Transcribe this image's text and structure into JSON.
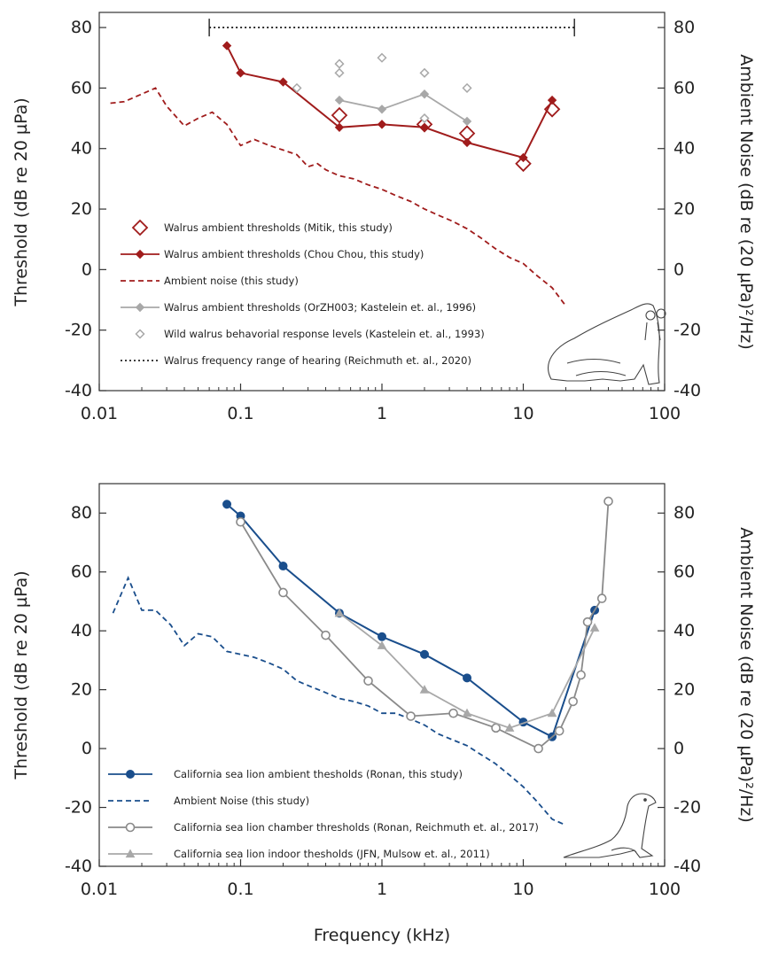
{
  "chart_data": [
    {
      "type": "line",
      "xscale": "log",
      "xlim": [
        0.01,
        100
      ],
      "ylim": [
        -40,
        85
      ],
      "y2lim": [
        -40,
        85
      ],
      "x_ticks": [
        0.01,
        0.1,
        1,
        10,
        100
      ],
      "x_tick_labels": [
        "0.01",
        "0.1",
        "1",
        "10",
        "100"
      ],
      "y_ticks": [
        -40,
        -20,
        0,
        20,
        40,
        60,
        80
      ],
      "y_tick_labels": [
        "-40",
        "-20",
        "0",
        "20",
        "40",
        "60",
        "80"
      ],
      "ylabel": "Threshold (dB re 20 µPa)",
      "y2label": "Ambient Noise (dB re (20 µPa)²/Hz)",
      "grid": false,
      "legend_position": "bottom-left",
      "series": [
        {
          "name": "Walrus ambient thresholds (Mitik, this study)",
          "style": "open-diamond-large",
          "color": "#a01c1c",
          "x": [
            0.5,
            2,
            4,
            10,
            16
          ],
          "y": [
            51,
            48,
            45,
            35,
            53
          ]
        },
        {
          "name": "Walrus ambient thresholds (Chou Chou, this study)",
          "style": "line-filled-diamond",
          "color": "#a01c1c",
          "x": [
            0.08,
            0.1,
            0.2,
            0.5,
            1,
            2,
            4,
            10,
            16
          ],
          "y": [
            74,
            65,
            62,
            47,
            48,
            47,
            42,
            37,
            56
          ]
        },
        {
          "name": "Ambient noise (this study)",
          "style": "dashed",
          "color": "#a01c1c",
          "x": [
            0.012,
            0.015,
            0.02,
            0.025,
            0.03,
            0.04,
            0.05,
            0.063,
            0.08,
            0.1,
            0.125,
            0.16,
            0.2,
            0.25,
            0.3,
            0.35,
            0.4,
            0.5,
            0.63,
            0.8,
            1,
            1.25,
            1.6,
            2,
            2.5,
            3.15,
            4,
            5,
            6.3,
            8,
            10,
            12.5,
            16,
            20
          ],
          "y": [
            55,
            55.5,
            58,
            60,
            54,
            47.5,
            50,
            52,
            48,
            41,
            43,
            41,
            39.5,
            38,
            34,
            35,
            33,
            31,
            30,
            28,
            26.5,
            24.5,
            22.5,
            20,
            18,
            16,
            13.5,
            10.5,
            7,
            4,
            2,
            -2,
            -6,
            -12
          ]
        },
        {
          "name": "Walrus ambient thresholds (OrZH003; Kastelein et. al., 1996)",
          "style": "line-filled-diamond",
          "color": "#a8a8a8",
          "x": [
            0.5,
            1,
            2,
            4
          ],
          "y": [
            56,
            53,
            58,
            49
          ]
        },
        {
          "name": "Wild walrus behavorial response levels (Kastelein et. al., 1993)",
          "style": "open-diamond-small",
          "color": "#a8a8a8",
          "x": [
            0.25,
            0.5,
            0.5,
            1,
            2,
            2,
            4
          ],
          "y": [
            60,
            68,
            65,
            70,
            65,
            50,
            60
          ]
        },
        {
          "name": "Walrus frequency range of hearing (Reichmuth et. al., 2020)",
          "style": "dotted-range",
          "color": "#222222",
          "x": [
            0.06,
            23
          ],
          "y": [
            80,
            80
          ]
        }
      ]
    },
    {
      "type": "line",
      "xscale": "log",
      "xlim": [
        0.01,
        100
      ],
      "ylim": [
        -40,
        90
      ],
      "y2lim": [
        -40,
        90
      ],
      "x_ticks": [
        0.01,
        0.1,
        1,
        10,
        100
      ],
      "x_tick_labels": [
        "0.01",
        "0.1",
        "1",
        "10",
        "100"
      ],
      "y_ticks": [
        -40,
        -20,
        0,
        20,
        40,
        60,
        80
      ],
      "y_tick_labels": [
        "-40",
        "-20",
        "0",
        "20",
        "40",
        "60",
        "80"
      ],
      "xlabel": "Frequency (kHz)",
      "ylabel": "Threshold (dB re 20 µPa)",
      "y2label": "Ambient Noise (dB re (20 µPa)²/Hz)",
      "grid": false,
      "legend_position": "bottom-left",
      "series": [
        {
          "name": "California sea lion ambient thesholds (Ronan, this study)",
          "style": "line-filled-circle",
          "color": "#1a4e8c",
          "x": [
            0.08,
            0.1,
            0.2,
            0.5,
            1,
            2,
            4,
            10,
            16,
            32
          ],
          "y": [
            83,
            79,
            62,
            46,
            38,
            32,
            24,
            9,
            4,
            47
          ]
        },
        {
          "name": "Ambient Noise (this study)",
          "style": "dashed",
          "color": "#1a4e8c",
          "x": [
            0.0125,
            0.016,
            0.02,
            0.025,
            0.032,
            0.04,
            0.05,
            0.063,
            0.08,
            0.1,
            0.125,
            0.16,
            0.2,
            0.25,
            0.315,
            0.4,
            0.5,
            0.63,
            0.8,
            1,
            1.25,
            1.6,
            2,
            2.5,
            3.15,
            4,
            5,
            6.3,
            8,
            10,
            12.5,
            16,
            20
          ],
          "y": [
            46,
            58,
            47,
            47,
            42,
            35,
            39,
            38,
            33,
            32,
            31,
            29,
            27,
            23,
            21,
            19,
            17,
            16,
            14.5,
            12,
            12,
            10,
            8,
            5,
            3,
            1,
            -2,
            -5,
            -9,
            -13,
            -18,
            -24,
            -26
          ]
        },
        {
          "name": "California sea lion chamber thresholds (Ronan, Reichmuth et. al., 2017)",
          "style": "line-open-circle",
          "color": "#8a8a8a",
          "x": [
            0.1,
            0.2,
            0.4,
            0.8,
            1.6,
            3.2,
            6.4,
            12.8,
            18,
            22.5,
            25.6,
            28.5,
            36,
            40
          ],
          "y": [
            77,
            53,
            38.5,
            23,
            11,
            12,
            7,
            0,
            6,
            16,
            25,
            43,
            51,
            84
          ]
        },
        {
          "name": "California sea lion indoor thesholds (JFN, Mulsow et. al., 2011)",
          "style": "line-filled-triangle",
          "color": "#a8a8a8",
          "x": [
            0.5,
            1,
            2,
            4,
            8,
            16,
            32
          ],
          "y": [
            46,
            35,
            20,
            12,
            7,
            12,
            41
          ]
        }
      ]
    }
  ]
}
